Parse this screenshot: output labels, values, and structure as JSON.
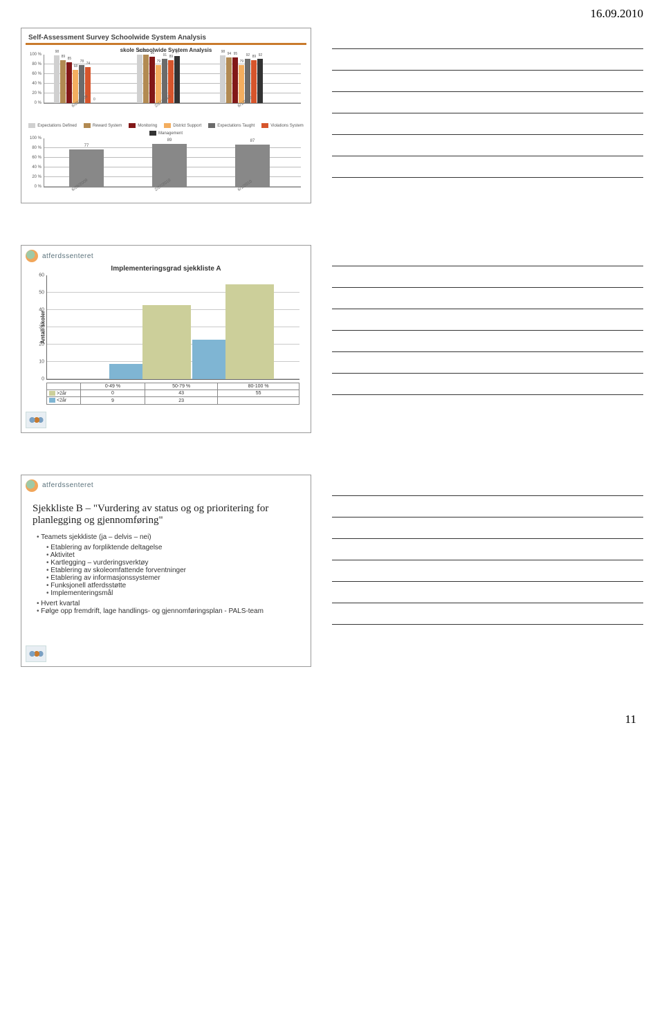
{
  "header": {
    "date": "16.09.2010"
  },
  "footer": {
    "page_number": "11"
  },
  "slide1": {
    "title": "Self-Assessment Survey Schoolwide System Analysis",
    "subtitle": "skole Schoolwide System Analysis",
    "y_axis": {
      "ticks": [
        "100 %",
        "80 %",
        "60 %",
        "40 %",
        "20 %",
        "0 %"
      ],
      "max": 100
    },
    "dates": [
      "6/26/2009",
      "2/27/2010",
      "6/1/2010"
    ],
    "top_chart": {
      "legend": [
        {
          "label": "Expectations Defined",
          "color": "#d0d0d0"
        },
        {
          "label": "Reward System",
          "color": "#b28a52"
        },
        {
          "label": "Monitoring",
          "color": "#821818"
        },
        {
          "label": "District Support",
          "color": "#f3ae5f"
        },
        {
          "label": "Expectations Taught",
          "color": "#6b6b6b"
        },
        {
          "label": "Violations System",
          "color": "#d6552c"
        },
        {
          "label": "Management",
          "color": "#333333"
        }
      ],
      "groups": [
        {
          "values": [
            98,
            89,
            85,
            68,
            78,
            74,
            0
          ]
        },
        {
          "values": [
            100,
            100,
            96,
            79,
            91,
            89,
            97
          ]
        },
        {
          "values": [
            98,
            94,
            95,
            79,
            92,
            89,
            92
          ]
        }
      ]
    },
    "bottom_chart": {
      "values": [
        77,
        89,
        87
      ],
      "bar_color": "#888888"
    }
  },
  "slide2": {
    "logo_text": "atferdssenteret",
    "title": "Implementeringsgrad sjekkliste A",
    "y_label": "Antall skoler",
    "y_max": 60,
    "y_step": 10,
    "categories": [
      "0-49 %",
      "50-79 %",
      "80-100 %"
    ],
    "series": [
      {
        "label": ">2år",
        "color": "#cccf9a",
        "values": [
          0,
          43,
          55
        ]
      },
      {
        "label": "<2år",
        "color": "#7fb5d3",
        "values": [
          9,
          23,
          null
        ]
      }
    ]
  },
  "slide3": {
    "logo_text": "atferdssenteret",
    "heading": "Sjekkliste B – \"Vurdering av status og og prioritering for planlegging og gjennomføring\"",
    "bullets": [
      {
        "text": "Teamets sjekkliste (ja – delvis – nei)",
        "children": [
          {
            "text": "Etablering av forpliktende deltagelse"
          },
          {
            "text": "Aktivitet"
          },
          {
            "text": "Kartlegging – vurderingsverktøy"
          },
          {
            "text": "Etablering av skoleomfattende forventninger"
          },
          {
            "text": "Etablering av informasjonssystemer"
          },
          {
            "text": "Funksjonell atferdsstøtte"
          },
          {
            "text": "Implementeringsmål"
          }
        ]
      },
      {
        "text": "Hvert kvartal"
      },
      {
        "text": "Følge opp fremdrift, lage handlings- og gjennomføringsplan - PALS-team"
      }
    ]
  }
}
